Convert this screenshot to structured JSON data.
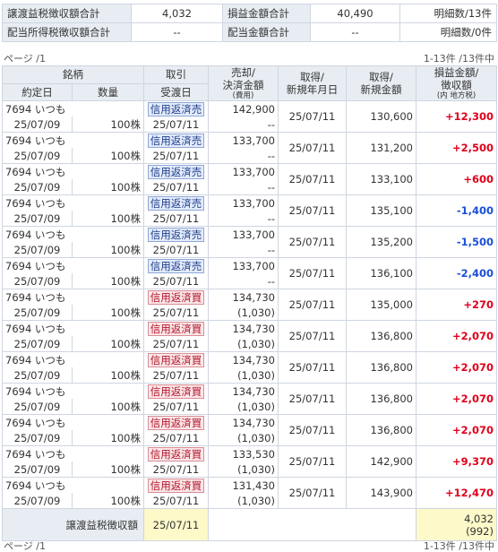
{
  "summary": {
    "transfer_tax_label": "譲渡益税徴収額合計",
    "transfer_tax_value": "4,032",
    "pl_total_label": "損益金額合計",
    "pl_total_value": "40,490",
    "detail_count": "明細数/13件",
    "dividend_tax_label": "配当所得税徴収額合計",
    "dividend_tax_value": "--",
    "dividend_total_label": "配当金額合計",
    "dividend_total_value": "--",
    "dividend_count": "明細数/0件"
  },
  "pager": {
    "page": "ページ /1",
    "range": "1-13件 /13件中"
  },
  "headers": {
    "stock": "銘柄",
    "trade": "取引",
    "sale_amount_1": "売却/",
    "sale_amount_2": "決済金額",
    "sale_amount_3": "(費用)",
    "acq_date_1": "取得/",
    "acq_date_2": "新規年月日",
    "acq_amount_1": "取得/",
    "acq_amount_2": "新規金額",
    "pl_1": "損益金額/",
    "pl_2": "徴収額",
    "pl_3": "(内 地方税)",
    "contract_date": "約定日",
    "quantity": "数量",
    "delivery_date": "受渡日"
  },
  "rows": [
    {
      "stock": "7694 いつも",
      "trade": "信用返済売",
      "type": "sell",
      "sale": "142,900",
      "fee": "--",
      "acq_date": "25/07/11",
      "acq_amount": "130,600",
      "pl": "+12,300",
      "sign": "pos",
      "contract": "25/07/09",
      "qty": "100株",
      "delivery": "25/07/11"
    },
    {
      "stock": "7694 いつも",
      "trade": "信用返済売",
      "type": "sell",
      "sale": "133,700",
      "fee": "--",
      "acq_date": "25/07/11",
      "acq_amount": "131,200",
      "pl": "+2,500",
      "sign": "pos",
      "contract": "25/07/09",
      "qty": "100株",
      "delivery": "25/07/11"
    },
    {
      "stock": "7694 いつも",
      "trade": "信用返済売",
      "type": "sell",
      "sale": "133,700",
      "fee": "--",
      "acq_date": "25/07/11",
      "acq_amount": "133,100",
      "pl": "+600",
      "sign": "pos",
      "contract": "25/07/09",
      "qty": "100株",
      "delivery": "25/07/11"
    },
    {
      "stock": "7694 いつも",
      "trade": "信用返済売",
      "type": "sell",
      "sale": "133,700",
      "fee": "--",
      "acq_date": "25/07/11",
      "acq_amount": "135,100",
      "pl": "-1,400",
      "sign": "neg",
      "contract": "25/07/09",
      "qty": "100株",
      "delivery": "25/07/11"
    },
    {
      "stock": "7694 いつも",
      "trade": "信用返済売",
      "type": "sell",
      "sale": "133,700",
      "fee": "--",
      "acq_date": "25/07/11",
      "acq_amount": "135,200",
      "pl": "-1,500",
      "sign": "neg",
      "contract": "25/07/09",
      "qty": "100株",
      "delivery": "25/07/11"
    },
    {
      "stock": "7694 いつも",
      "trade": "信用返済売",
      "type": "sell",
      "sale": "133,700",
      "fee": "--",
      "acq_date": "25/07/11",
      "acq_amount": "136,100",
      "pl": "-2,400",
      "sign": "neg",
      "contract": "25/07/09",
      "qty": "100株",
      "delivery": "25/07/11"
    },
    {
      "stock": "7694 いつも",
      "trade": "信用返済買",
      "type": "buy",
      "sale": "134,730",
      "fee": "(1,030)",
      "acq_date": "25/07/11",
      "acq_amount": "135,000",
      "pl": "+270",
      "sign": "pos",
      "contract": "25/07/09",
      "qty": "100株",
      "delivery": "25/07/11"
    },
    {
      "stock": "7694 いつも",
      "trade": "信用返済買",
      "type": "buy",
      "sale": "134,730",
      "fee": "(1,030)",
      "acq_date": "25/07/11",
      "acq_amount": "136,800",
      "pl": "+2,070",
      "sign": "pos",
      "contract": "25/07/09",
      "qty": "100株",
      "delivery": "25/07/11"
    },
    {
      "stock": "7694 いつも",
      "trade": "信用返済買",
      "type": "buy",
      "sale": "134,730",
      "fee": "(1,030)",
      "acq_date": "25/07/11",
      "acq_amount": "136,800",
      "pl": "+2,070",
      "sign": "pos",
      "contract": "25/07/09",
      "qty": "100株",
      "delivery": "25/07/11"
    },
    {
      "stock": "7694 いつも",
      "trade": "信用返済買",
      "type": "buy",
      "sale": "134,730",
      "fee": "(1,030)",
      "acq_date": "25/07/11",
      "acq_amount": "136,800",
      "pl": "+2,070",
      "sign": "pos",
      "contract": "25/07/09",
      "qty": "100株",
      "delivery": "25/07/11"
    },
    {
      "stock": "7694 いつも",
      "trade": "信用返済買",
      "type": "buy",
      "sale": "134,730",
      "fee": "(1,030)",
      "acq_date": "25/07/11",
      "acq_amount": "136,800",
      "pl": "+2,070",
      "sign": "pos",
      "contract": "25/07/09",
      "qty": "100株",
      "delivery": "25/07/11"
    },
    {
      "stock": "7694 いつも",
      "trade": "信用返済買",
      "type": "buy",
      "sale": "133,530",
      "fee": "(1,030)",
      "acq_date": "25/07/11",
      "acq_amount": "142,900",
      "pl": "+9,370",
      "sign": "pos",
      "contract": "25/07/09",
      "qty": "100株",
      "delivery": "25/07/11"
    },
    {
      "stock": "7694 いつも",
      "trade": "信用返済買",
      "type": "buy",
      "sale": "131,430",
      "fee": "(1,030)",
      "acq_date": "25/07/11",
      "acq_amount": "143,900",
      "pl": "+12,470",
      "sign": "pos",
      "contract": "25/07/09",
      "qty": "100株",
      "delivery": "25/07/11"
    }
  ],
  "footer": {
    "label": "譲渡益税徴収額",
    "date": "25/07/11",
    "tax": "4,032",
    "local_tax": "(992)"
  },
  "colors": {
    "positive": "#e0001a",
    "negative": "#1a4fd8",
    "header_bg": "#e8edf3",
    "highlight_bg": "#fdf9c9"
  }
}
